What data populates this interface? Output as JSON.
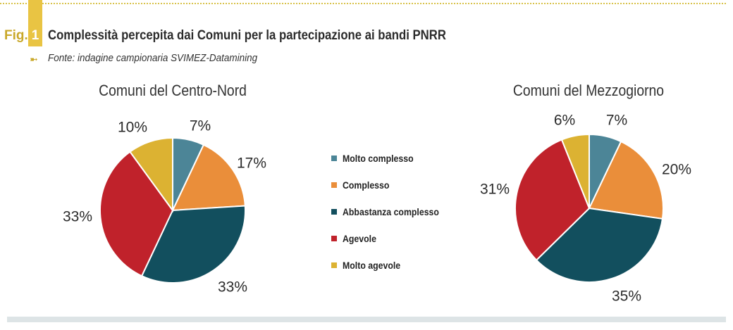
{
  "header": {
    "fig_label": "Fig.",
    "fig_number": "1",
    "title": "Complessità percepita dai Comuni per la partecipazione ai bandi PNRR",
    "source_arrow": "➼",
    "source": "Fonte: indagine campionaria SVIMEZ-Datamining"
  },
  "colors": {
    "accent": "#e9c443",
    "fig_label": "#c9a82a",
    "bottom_band": "#dde4e6"
  },
  "legend": [
    {
      "label": "Molto complesso",
      "color": "#4c8597"
    },
    {
      "label": "Complesso",
      "color": "#ea8e3a"
    },
    {
      "label": "Abbastanza complesso",
      "color": "#124f5e"
    },
    {
      "label": "Agevole",
      "color": "#c0222b"
    },
    {
      "label": "Molto agevole",
      "color": "#dcb232"
    }
  ],
  "chart_data": [
    {
      "type": "pie",
      "title": "Comuni del Centro-Nord",
      "categories": [
        "Molto complesso",
        "Complesso",
        "Abbastanza complesso",
        "Agevole",
        "Molto agevole"
      ],
      "values": [
        7,
        17,
        33,
        33,
        10
      ],
      "labels": [
        "7%",
        "17%",
        "33%",
        "33%",
        "10%"
      ],
      "colors": [
        "#4c8597",
        "#ea8e3a",
        "#124f5e",
        "#c0222b",
        "#dcb232"
      ]
    },
    {
      "type": "pie",
      "title": "Comuni del Mezzogiorno",
      "categories": [
        "Molto complesso",
        "Complesso",
        "Abbastanza complesso",
        "Agevole",
        "Molto agevole"
      ],
      "values": [
        7,
        20,
        35,
        31,
        6
      ],
      "labels": [
        "7%",
        "20%",
        "35%",
        "31%",
        "6%"
      ],
      "colors": [
        "#4c8597",
        "#ea8e3a",
        "#124f5e",
        "#c0222b",
        "#dcb232"
      ]
    }
  ]
}
